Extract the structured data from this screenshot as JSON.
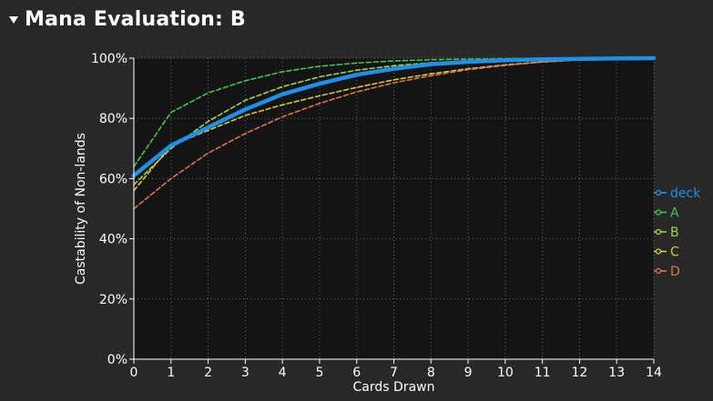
{
  "header": {
    "title": "Mana Evaluation: B",
    "toggle_icon": "triangle-down-icon"
  },
  "chart_data": {
    "type": "line",
    "title": "",
    "xlabel": "Cards Drawn",
    "ylabel": "Castability of Non-lands",
    "xlim": [
      0,
      14
    ],
    "ylim": [
      0,
      100
    ],
    "x_ticks": [
      0,
      1,
      2,
      3,
      4,
      5,
      6,
      7,
      8,
      9,
      10,
      11,
      12,
      13,
      14
    ],
    "y_ticks": [
      0,
      20,
      40,
      60,
      80,
      100
    ],
    "y_tick_labels": [
      "0%",
      "20%",
      "40%",
      "60%",
      "80%",
      "100%"
    ],
    "grid": true,
    "legend_position": "right",
    "x": [
      0,
      1,
      2,
      3,
      4,
      5,
      6,
      7,
      8,
      9,
      10,
      11,
      12,
      13,
      14
    ],
    "series": [
      {
        "name": "deck",
        "color": "#1e90e8",
        "dashed": false,
        "values": [
          61,
          71,
          77,
          83,
          88,
          91.5,
          94.5,
          96.5,
          98,
          98.8,
          99.3,
          99.6,
          99.8,
          99.9,
          100
        ]
      },
      {
        "name": "A",
        "color": "#3ec84e",
        "dashed": true,
        "values": [
          64,
          82,
          88.5,
          92.5,
          95.5,
          97.3,
          98.4,
          99.1,
          99.5,
          99.7,
          99.85,
          99.9,
          99.95,
          100,
          100
        ]
      },
      {
        "name": "B",
        "color": "#9ed840",
        "dashed": true,
        "values": [
          58,
          70,
          79,
          86,
          90.5,
          93.8,
          96,
          97.5,
          98.5,
          99.1,
          99.5,
          99.7,
          99.85,
          99.95,
          100
        ]
      },
      {
        "name": "C",
        "color": "#d8c83c",
        "dashed": true,
        "values": [
          56,
          71,
          76,
          81,
          84.5,
          87.5,
          90.3,
          92.8,
          94.8,
          96.5,
          97.8,
          98.8,
          99.5,
          99.9,
          100
        ]
      },
      {
        "name": "D",
        "color": "#e07448",
        "dashed": true,
        "values": [
          50,
          60,
          68.5,
          75,
          80.5,
          85,
          88.8,
          91.8,
          94.2,
          96.2,
          97.6,
          98.7,
          99.4,
          99.8,
          100
        ]
      }
    ]
  }
}
